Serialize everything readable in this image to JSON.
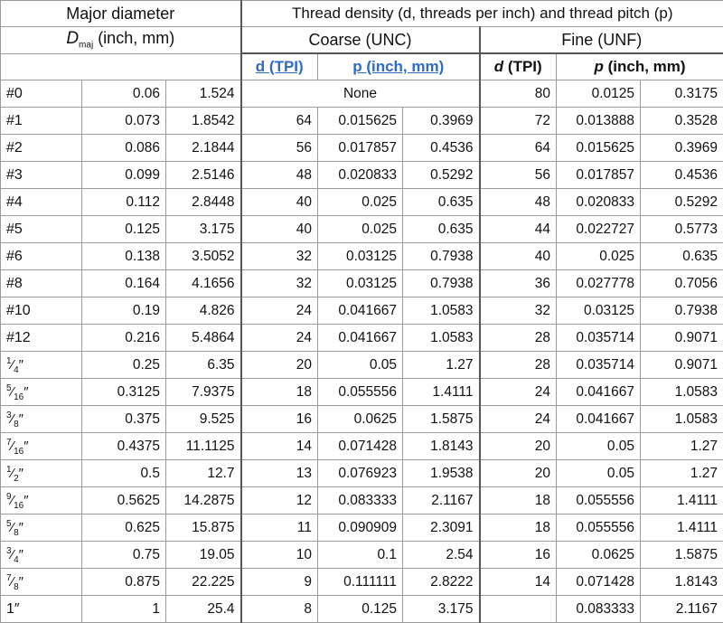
{
  "header": {
    "major_diameter": "Major diameter",
    "d_symbol": "D",
    "d_subscript": "maj",
    "d_units": "(inch, mm)",
    "thread_density": "Thread density (d, threads per inch) and thread pitch (p)",
    "coarse": "Coarse (UNC)",
    "fine": "Fine (UNF)",
    "coarse_d": "d (TPI)",
    "coarse_p": "p (inch, mm)",
    "fine_d_symbol": "d",
    "fine_d_units": "(TPI)",
    "fine_p_symbol": "p",
    "fine_p_units": "(inch, mm)"
  },
  "rows": [
    {
      "size": "#0",
      "inch": "0.06",
      "mm": "1.524",
      "c_tpi": "",
      "c_in": "",
      "c_mm": "",
      "f_tpi": "80",
      "f_in": "0.0125",
      "f_mm": "0.3175",
      "none": "None"
    },
    {
      "size": "#1",
      "inch": "0.073",
      "mm": "1.8542",
      "c_tpi": "64",
      "c_in": "0.015625",
      "c_mm": "0.3969",
      "f_tpi": "72",
      "f_in": "0.013888",
      "f_mm": "0.3528"
    },
    {
      "size": "#2",
      "inch": "0.086",
      "mm": "2.1844",
      "c_tpi": "56",
      "c_in": "0.017857",
      "c_mm": "0.4536",
      "f_tpi": "64",
      "f_in": "0.015625",
      "f_mm": "0.3969"
    },
    {
      "size": "#3",
      "inch": "0.099",
      "mm": "2.5146",
      "c_tpi": "48",
      "c_in": "0.020833",
      "c_mm": "0.5292",
      "f_tpi": "56",
      "f_in": "0.017857",
      "f_mm": "0.4536"
    },
    {
      "size": "#4",
      "inch": "0.112",
      "mm": "2.8448",
      "c_tpi": "40",
      "c_in": "0.025",
      "c_mm": "0.635",
      "f_tpi": "48",
      "f_in": "0.020833",
      "f_mm": "0.5292"
    },
    {
      "size": "#5",
      "inch": "0.125",
      "mm": "3.175",
      "c_tpi": "40",
      "c_in": "0.025",
      "c_mm": "0.635",
      "f_tpi": "44",
      "f_in": "0.022727",
      "f_mm": "0.5773"
    },
    {
      "size": "#6",
      "inch": "0.138",
      "mm": "3.5052",
      "c_tpi": "32",
      "c_in": "0.03125",
      "c_mm": "0.7938",
      "f_tpi": "40",
      "f_in": "0.025",
      "f_mm": "0.635"
    },
    {
      "size": "#8",
      "inch": "0.164",
      "mm": "4.1656",
      "c_tpi": "32",
      "c_in": "0.03125",
      "c_mm": "0.7938",
      "f_tpi": "36",
      "f_in": "0.027778",
      "f_mm": "0.7056"
    },
    {
      "size": "#10",
      "inch": "0.19",
      "mm": "4.826",
      "c_tpi": "24",
      "c_in": "0.041667",
      "c_mm": "1.0583",
      "f_tpi": "32",
      "f_in": "0.03125",
      "f_mm": "0.7938"
    },
    {
      "size": "#12",
      "inch": "0.216",
      "mm": "5.4864",
      "c_tpi": "24",
      "c_in": "0.041667",
      "c_mm": "1.0583",
      "f_tpi": "28",
      "f_in": "0.035714",
      "f_mm": "0.9071"
    },
    {
      "num": "1",
      "den": "4",
      "unit": "″",
      "inch": "0.25",
      "mm": "6.35",
      "c_tpi": "20",
      "c_in": "0.05",
      "c_mm": "1.27",
      "f_tpi": "28",
      "f_in": "0.035714",
      "f_mm": "0.9071"
    },
    {
      "num": "5",
      "den": "16",
      "unit": "″",
      "inch": "0.3125",
      "mm": "7.9375",
      "c_tpi": "18",
      "c_in": "0.055556",
      "c_mm": "1.4111",
      "f_tpi": "24",
      "f_in": "0.041667",
      "f_mm": "1.0583"
    },
    {
      "num": "3",
      "den": "8",
      "unit": "″",
      "inch": "0.375",
      "mm": "9.525",
      "c_tpi": "16",
      "c_in": "0.0625",
      "c_mm": "1.5875",
      "f_tpi": "24",
      "f_in": "0.041667",
      "f_mm": "1.0583"
    },
    {
      "num": "7",
      "den": "16",
      "unit": "″",
      "inch": "0.4375",
      "mm": "11.1125",
      "c_tpi": "14",
      "c_in": "0.071428",
      "c_mm": "1.8143",
      "f_tpi": "20",
      "f_in": "0.05",
      "f_mm": "1.27"
    },
    {
      "num": "1",
      "den": "2",
      "unit": "″",
      "inch": "0.5",
      "mm": "12.7",
      "c_tpi": "13",
      "c_in": "0.076923",
      "c_mm": "1.9538",
      "f_tpi": "20",
      "f_in": "0.05",
      "f_mm": "1.27"
    },
    {
      "num": "9",
      "den": "16",
      "unit": "″",
      "inch": "0.5625",
      "mm": "14.2875",
      "c_tpi": "12",
      "c_in": "0.083333",
      "c_mm": "2.1167",
      "f_tpi": "18",
      "f_in": "0.055556",
      "f_mm": "1.4111"
    },
    {
      "num": "5",
      "den": "8",
      "unit": "″",
      "inch": "0.625",
      "mm": "15.875",
      "c_tpi": "11",
      "c_in": "0.090909",
      "c_mm": "2.3091",
      "f_tpi": "18",
      "f_in": "0.055556",
      "f_mm": "1.4111"
    },
    {
      "num": "3",
      "den": "4",
      "unit": "″",
      "inch": "0.75",
      "mm": "19.05",
      "c_tpi": "10",
      "c_in": "0.1",
      "c_mm": "2.54",
      "f_tpi": "16",
      "f_in": "0.0625",
      "f_mm": "1.5875"
    },
    {
      "num": "7",
      "den": "8",
      "unit": "″",
      "inch": "0.875",
      "mm": "22.225",
      "c_tpi": "9",
      "c_in": "0.111111",
      "c_mm": "2.8222",
      "f_tpi": "14",
      "f_in": "0.071428",
      "f_mm": "1.8143"
    },
    {
      "size": "1″",
      "inch": "1",
      "mm": "25.4",
      "c_tpi": "8",
      "c_in": "0.125",
      "c_mm": "3.175",
      "f_tpi": "",
      "f_in": "0.083333",
      "f_mm": "2.1167"
    }
  ]
}
